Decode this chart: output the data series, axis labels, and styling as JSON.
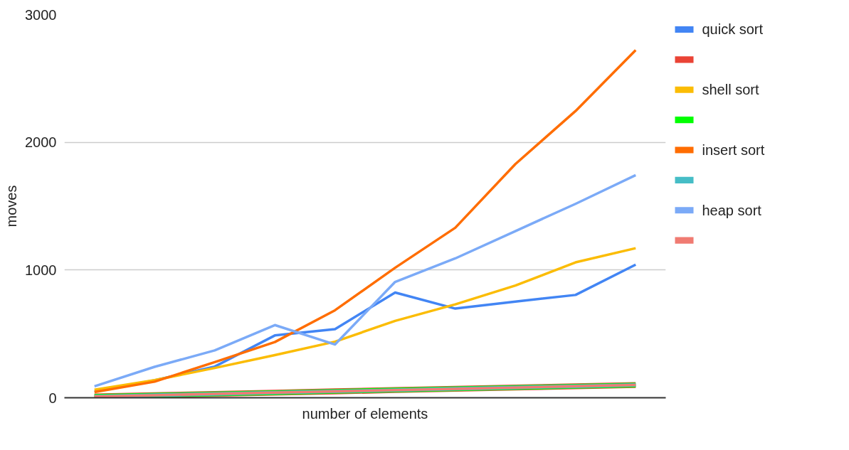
{
  "chart_data": {
    "type": "line",
    "xlabel": "number of elements",
    "ylabel": "moves",
    "categories": [
      null,
      null,
      null,
      null,
      null,
      null,
      null,
      null,
      null,
      null
    ],
    "series": [
      {
        "name": "quick sort",
        "color": "#4285f4",
        "values": [
          48,
          137,
          244,
          488,
          537,
          824,
          698,
          753,
          805,
          1042
        ]
      },
      {
        "color": "#ea4335",
        "values": [
          10,
          20,
          30,
          40,
          50,
          60,
          70,
          80,
          90,
          100
        ]
      },
      {
        "name": "shell sort",
        "color": "#fbbc04",
        "values": [
          63,
          138,
          233,
          334,
          439,
          602,
          731,
          879,
          1060,
          1171
        ]
      },
      {
        "color": "#00ff00",
        "values": [
          10,
          20,
          30,
          40,
          50,
          60,
          70,
          80,
          90,
          100
        ]
      },
      {
        "name": "insert sort",
        "color": "#ff6d01",
        "values": [
          44,
          126,
          279,
          436,
          685,
          1018,
          1331,
          1830,
          2245,
          2722
        ]
      },
      {
        "color": "#46bdc6",
        "values": [
          10,
          20,
          30,
          40,
          50,
          60,
          70,
          80,
          90,
          100
        ]
      },
      {
        "name": "heap sort",
        "color": "#7baaf7",
        "values": [
          90,
          242,
          371,
          569,
          417,
          907,
          1091,
          1305,
          1518,
          1743
        ]
      },
      {
        "color": "#f07b72",
        "values": [
          10,
          20,
          30,
          40,
          50,
          60,
          70,
          80,
          90,
          100
        ]
      }
    ],
    "ylim": [
      0,
      3000
    ],
    "yticks": [
      0,
      1000,
      2000,
      3000
    ],
    "grid": "y",
    "legend": "right",
    "tick_labels": "y"
  }
}
